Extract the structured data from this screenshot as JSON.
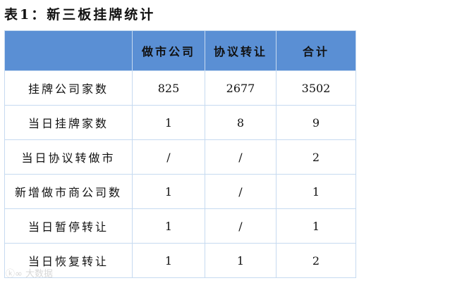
{
  "title": "表1：新三板挂牌统计",
  "columns": [
    "",
    "做市公司",
    "协议转让",
    "合计"
  ],
  "rows": [
    {
      "label": "挂牌公司家数",
      "values": [
        "825",
        "2677",
        "3502"
      ]
    },
    {
      "label": "当日挂牌家数",
      "values": [
        "1",
        "8",
        "9"
      ]
    },
    {
      "label": "当日协议转做市",
      "values": [
        "/",
        "/",
        "2"
      ]
    },
    {
      "label": "新增做市商公司数",
      "values": [
        "1",
        "/",
        "1"
      ]
    },
    {
      "label": "当日暂停转让",
      "values": [
        "1",
        "/",
        "1"
      ]
    },
    {
      "label": "当日恢复转让",
      "values": [
        "1",
        "1",
        "2"
      ]
    }
  ],
  "watermark": "大数据"
}
